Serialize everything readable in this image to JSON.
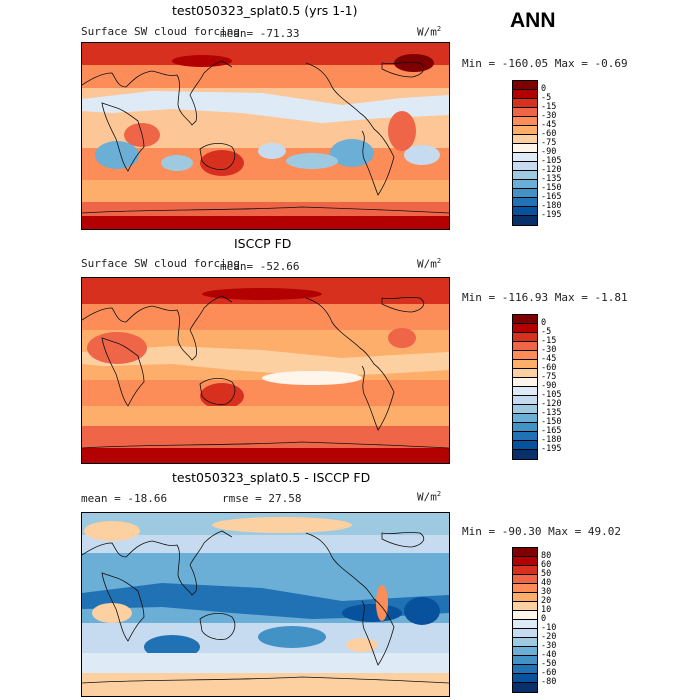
{
  "season": "ANN",
  "units_base": "W/m",
  "units_exp": "2",
  "panels": [
    {
      "title": "test050323_splat0.5 (yrs 1-1)",
      "field": "Surface SW cloud forcing",
      "mean_text": "mean= -71.33",
      "minmax_text": "Min = -160.05 Max =  -0.69",
      "colorbar": {
        "labels": [
          "0",
          "-5",
          "-15",
          "-30",
          "-45",
          "-60",
          "-75",
          "-90",
          "-105",
          "-120",
          "-135",
          "-150",
          "-165",
          "-180",
          "-195"
        ],
        "colors": [
          "#7f0000",
          "#b30000",
          "#d7301f",
          "#ef6548",
          "#fc8d59",
          "#fdae6b",
          "#fdd0a2",
          "#fff5eb",
          "#deebf7",
          "#c6dbef",
          "#9ecae1",
          "#6baed6",
          "#4292c6",
          "#2171b5",
          "#08519c",
          "#08306b"
        ]
      }
    },
    {
      "title": "ISCCP FD",
      "field": "Surface SW cloud forcing",
      "mean_text": "mean= -52.66",
      "minmax_text": "Min = -116.93 Max =  -1.81",
      "colorbar": {
        "labels": [
          "0",
          "-5",
          "-15",
          "-30",
          "-45",
          "-60",
          "-75",
          "-90",
          "-105",
          "-120",
          "-135",
          "-150",
          "-165",
          "-180",
          "-195"
        ],
        "colors": [
          "#7f0000",
          "#b30000",
          "#d7301f",
          "#ef6548",
          "#fc8d59",
          "#fdae6b",
          "#fdd0a2",
          "#fff5eb",
          "#deebf7",
          "#c6dbef",
          "#9ecae1",
          "#6baed6",
          "#4292c6",
          "#2171b5",
          "#08519c",
          "#08306b"
        ]
      }
    },
    {
      "title": "test050323_splat0.5 - ISCCP FD",
      "mean_text": "mean = -18.66",
      "rmse_text": "rmse =  27.58",
      "minmax_text": "Min = -90.30 Max =  49.02",
      "colorbar": {
        "labels": [
          "80",
          "60",
          "50",
          "40",
          "30",
          "20",
          "10",
          "0",
          "-10",
          "-20",
          "-30",
          "-40",
          "-50",
          "-60",
          "-80"
        ],
        "colors": [
          "#7f0000",
          "#b30000",
          "#d7301f",
          "#ef6548",
          "#fc8d59",
          "#fdae6b",
          "#fdd0a2",
          "#fff5eb",
          "#deebf7",
          "#c6dbef",
          "#9ecae1",
          "#6baed6",
          "#4292c6",
          "#2171b5",
          "#08519c",
          "#08306b"
        ]
      }
    }
  ]
}
